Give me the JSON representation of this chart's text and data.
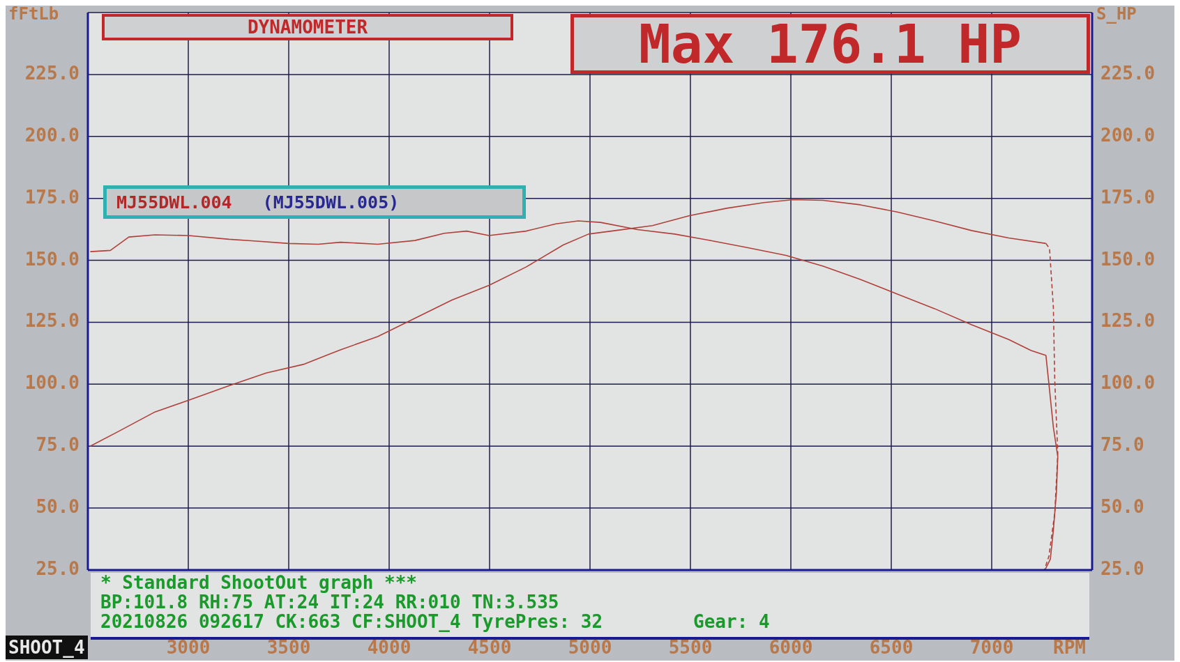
{
  "chart_data": {
    "type": "line",
    "title": "DYNAMOMETER",
    "xlabel": "RPM",
    "ylabel": "fFtLb",
    "y2label": "S_HP",
    "xlim": [
      2500,
      7500
    ],
    "xticks": [
      3000,
      3500,
      4000,
      4500,
      5000,
      5500,
      6000,
      6500,
      7000
    ],
    "ylim": [
      25,
      250
    ],
    "yticks": [
      {
        "value": 25,
        "label": "25.0"
      },
      {
        "value": 50,
        "label": "50.0"
      },
      {
        "value": 75,
        "label": "75.0"
      },
      {
        "value": 100,
        "label": "100.0"
      },
      {
        "value": 125,
        "label": "125.0"
      },
      {
        "value": 150,
        "label": "150.0"
      },
      {
        "value": 175,
        "label": "175.0"
      },
      {
        "value": 200,
        "label": "200.0"
      },
      {
        "value": 225,
        "label": "225.0"
      }
    ],
    "y2lim": [
      25,
      250
    ],
    "y2ticks": [
      {
        "value": 25,
        "label": "25.0"
      },
      {
        "value": 50,
        "label": "50.0"
      },
      {
        "value": 75,
        "label": "75.0"
      },
      {
        "value": 100,
        "label": "100.0"
      },
      {
        "value": 125,
        "label": "125.0"
      },
      {
        "value": 150,
        "label": "150.0"
      },
      {
        "value": 175,
        "label": "175.0"
      },
      {
        "value": 200,
        "label": "200.0"
      },
      {
        "value": 225,
        "label": "225.0"
      }
    ],
    "grid": true,
    "marker": "none",
    "legend": false,
    "series": [
      {
        "color": "#b0403a",
        "line_style": "solid",
        "x": [
          2512,
          2612,
          2704,
          2834,
          3000,
          3203,
          3314,
          3500,
          3647,
          3758,
          3943,
          4128,
          4275,
          4386,
          4497,
          4682,
          4830,
          4941,
          5052,
          5237,
          5421,
          5606,
          5791,
          5976,
          6161,
          6346,
          6530,
          6715,
          6900,
          7085,
          7196,
          7270,
          7285,
          7307,
          7329,
          7322,
          7307,
          7292,
          7265
        ],
        "values": [
          153.5,
          154,
          159.4,
          160.3,
          160,
          158.5,
          157.9,
          156.8,
          156.5,
          157.3,
          156.5,
          158,
          160.9,
          161.8,
          160,
          161.8,
          164.7,
          165.9,
          165.3,
          162.4,
          160.6,
          157.9,
          155,
          152,
          147.6,
          142.3,
          136.4,
          130.5,
          124,
          118,
          113.6,
          111.6,
          100,
          82.6,
          70.8,
          56,
          41,
          29.4,
          25
        ]
      },
      {
        "color": "#b0403a",
        "line_style": "solid",
        "x": [
          2512,
          2649,
          2834,
          3000,
          3203,
          3388,
          3573,
          3758,
          3943,
          4128,
          4313,
          4497,
          4682,
          4867,
          4993,
          5126,
          5311,
          5495,
          5680,
          5865,
          6013,
          6161,
          6346,
          6530,
          6715,
          6900,
          7085,
          7270
        ],
        "values": [
          75,
          80.8,
          88.8,
          93.5,
          99.4,
          104.5,
          108,
          113.9,
          119.2,
          126.6,
          134,
          139.9,
          147.3,
          156.2,
          160.6,
          162,
          164,
          168,
          171,
          173.3,
          174.5,
          174.2,
          172.4,
          169.5,
          165.9,
          162,
          159,
          156.8
        ]
      },
      {
        "color": "#b0403a",
        "line_style": "dashed",
        "x": [
          7270,
          7288,
          7307,
          7314,
          7329,
          7314,
          7285,
          7262
        ],
        "values": [
          156.8,
          154.7,
          131,
          101.5,
          72,
          48,
          30.6,
          25
        ]
      }
    ],
    "annotations": [
      "Max 176.1 HP",
      "MJ55DWL.004",
      "(MJ55DWL.005)",
      "* Standard ShootOut graph ***",
      "BP:101.8 RH:75 AT:24 IT:24 RR:010 TN:3.535",
      "20210826 092617 CK:663 CF:SHOOT_4 TyrePres: 32",
      "Gear: 4",
      "SHOOT_4"
    ]
  }
}
